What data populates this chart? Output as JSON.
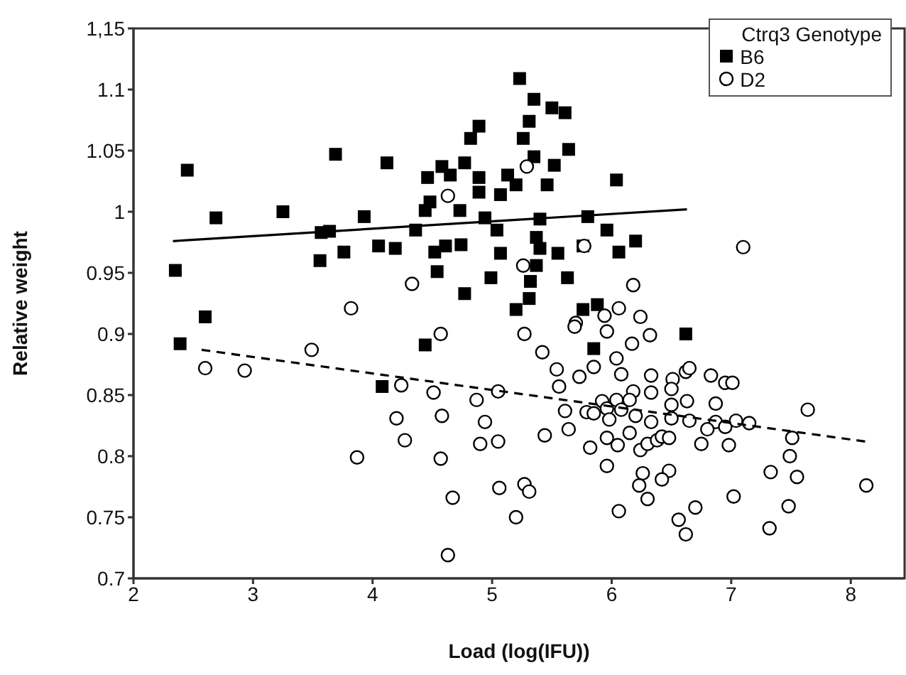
{
  "chart_data": {
    "type": "scatter",
    "xlabel": "Load (log(IFU))",
    "ylabel": "Relative weight",
    "legend_title": "Ctrq3 Genotype",
    "legend": "top right",
    "grid": false,
    "xlim": [
      2,
      8.45
    ],
    "xticks": [
      2,
      3,
      4,
      5,
      6,
      7,
      8
    ],
    "ylim": [
      0.7,
      1.15
    ],
    "yticks": [
      0.7,
      0.75,
      0.8,
      0.85,
      0.9,
      0.95,
      1,
      1.05,
      1.1,
      {
        "value": 1.15,
        "label": "1,15"
      }
    ],
    "series": [
      {
        "name": "B6",
        "type": "scatter",
        "marker": "square",
        "color": "#000000",
        "x": [
          2.45,
          3.69,
          4.12,
          2.69,
          3.25,
          2.35,
          2.6,
          3.57,
          3.64,
          3.56,
          3.76,
          4.05,
          4.19,
          3.93,
          4.36,
          4.46,
          4.48,
          4.44,
          4.58,
          4.65,
          4.77,
          4.89,
          4.89,
          4.82,
          4.89,
          4.73,
          4.94,
          5.04,
          5.07,
          5.13,
          4.52,
          4.61,
          4.74,
          4.54,
          4.77,
          4.99,
          5.07,
          5.23,
          5.35,
          5.5,
          5.61,
          5.31,
          5.26,
          5.64,
          5.35,
          5.52,
          6.04,
          5.2,
          5.46,
          5.4,
          5.8,
          5.37,
          5.96,
          5.4,
          5.55,
          5.76,
          6.06,
          6.2,
          5.37,
          5.32,
          5.63,
          5.31,
          5.2,
          5.76,
          5.88,
          2.39,
          4.44,
          4.08,
          6.62,
          5.85
        ],
        "values": [
          1.034,
          1.047,
          1.04,
          0.995,
          1.0,
          0.952,
          0.914,
          0.983,
          0.984,
          0.96,
          0.967,
          0.972,
          0.97,
          0.996,
          0.985,
          1.028,
          1.008,
          1.001,
          1.037,
          1.03,
          1.04,
          1.028,
          1.016,
          1.06,
          1.07,
          1.001,
          0.995,
          0.985,
          1.014,
          1.03,
          0.967,
          0.972,
          0.973,
          0.951,
          0.933,
          0.946,
          0.966,
          1.109,
          1.092,
          1.085,
          1.081,
          1.074,
          1.06,
          1.051,
          1.045,
          1.038,
          1.026,
          1.022,
          1.022,
          0.994,
          0.996,
          0.979,
          0.985,
          0.97,
          0.966,
          0.972,
          0.967,
          0.976,
          0.956,
          0.943,
          0.946,
          0.929,
          0.92,
          0.92,
          0.924,
          0.892,
          0.891,
          0.857,
          0.9,
          0.888
        ]
      },
      {
        "name": "D2",
        "type": "scatter",
        "marker": "circle",
        "color": "#000000",
        "x": [
          4.63,
          4.33,
          3.82,
          5.29,
          5.77,
          5.26,
          7.1,
          6.18,
          6.06,
          5.94,
          6.24,
          5.7,
          2.6,
          2.93,
          3.49,
          4.57,
          4.24,
          4.51,
          4.2,
          4.58,
          4.27,
          3.87,
          4.57,
          4.87,
          4.94,
          4.9,
          5.05,
          5.05,
          4.67,
          5.06,
          4.63,
          5.27,
          5.69,
          5.96,
          6.32,
          6.17,
          5.42,
          6.04,
          5.85,
          5.54,
          5.73,
          6.08,
          6.33,
          6.51,
          6.62,
          6.65,
          6.83,
          6.95,
          7.01,
          5.56,
          6.18,
          6.33,
          6.5,
          5.92,
          6.04,
          6.15,
          6.63,
          6.87,
          7.64,
          5.61,
          5.79,
          5.85,
          5.96,
          6.08,
          6.5,
          5.98,
          6.2,
          6.33,
          6.5,
          6.65,
          6.87,
          6.95,
          7.04,
          7.15,
          6.8,
          5.64,
          5.44,
          5.82,
          5.96,
          6.05,
          6.15,
          6.24,
          6.3,
          6.38,
          6.42,
          6.48,
          6.75,
          6.98,
          7.51,
          5.96,
          6.26,
          6.48,
          6.42,
          7.33,
          7.49,
          7.55,
          8.13,
          5.27,
          5.31,
          6.23,
          6.3,
          7.02,
          5.2,
          6.06,
          6.7,
          7.48,
          6.56,
          6.62,
          7.32
        ],
        "values": [
          1.013,
          0.941,
          0.921,
          1.037,
          0.972,
          0.956,
          0.971,
          0.94,
          0.921,
          0.915,
          0.914,
          0.909,
          0.872,
          0.87,
          0.887,
          0.9,
          0.858,
          0.852,
          0.831,
          0.833,
          0.813,
          0.799,
          0.798,
          0.846,
          0.828,
          0.81,
          0.812,
          0.853,
          0.766,
          0.774,
          0.719,
          0.9,
          0.906,
          0.902,
          0.899,
          0.892,
          0.885,
          0.88,
          0.873,
          0.871,
          0.865,
          0.867,
          0.866,
          0.863,
          0.869,
          0.872,
          0.866,
          0.86,
          0.86,
          0.857,
          0.853,
          0.852,
          0.855,
          0.845,
          0.846,
          0.846,
          0.845,
          0.843,
          0.838,
          0.837,
          0.836,
          0.835,
          0.839,
          0.838,
          0.842,
          0.83,
          0.833,
          0.828,
          0.831,
          0.829,
          0.828,
          0.824,
          0.829,
          0.827,
          0.822,
          0.822,
          0.817,
          0.807,
          0.815,
          0.809,
          0.819,
          0.805,
          0.81,
          0.813,
          0.816,
          0.815,
          0.81,
          0.809,
          0.815,
          0.792,
          0.786,
          0.788,
          0.781,
          0.787,
          0.8,
          0.783,
          0.776,
          0.777,
          0.771,
          0.776,
          0.765,
          0.767,
          0.75,
          0.755,
          0.758,
          0.759,
          0.748,
          0.736,
          0.741
        ]
      },
      {
        "type": "line",
        "marker": "none",
        "line_style": "solid",
        "color": "#000000",
        "x": [
          2.33,
          6.63
        ],
        "values": [
          0.976,
          1.002
        ]
      },
      {
        "type": "line",
        "marker": "none",
        "line_style": "dashed",
        "color": "#000000",
        "x": [
          2.57,
          8.12
        ],
        "values": [
          0.887,
          0.812
        ]
      }
    ]
  }
}
